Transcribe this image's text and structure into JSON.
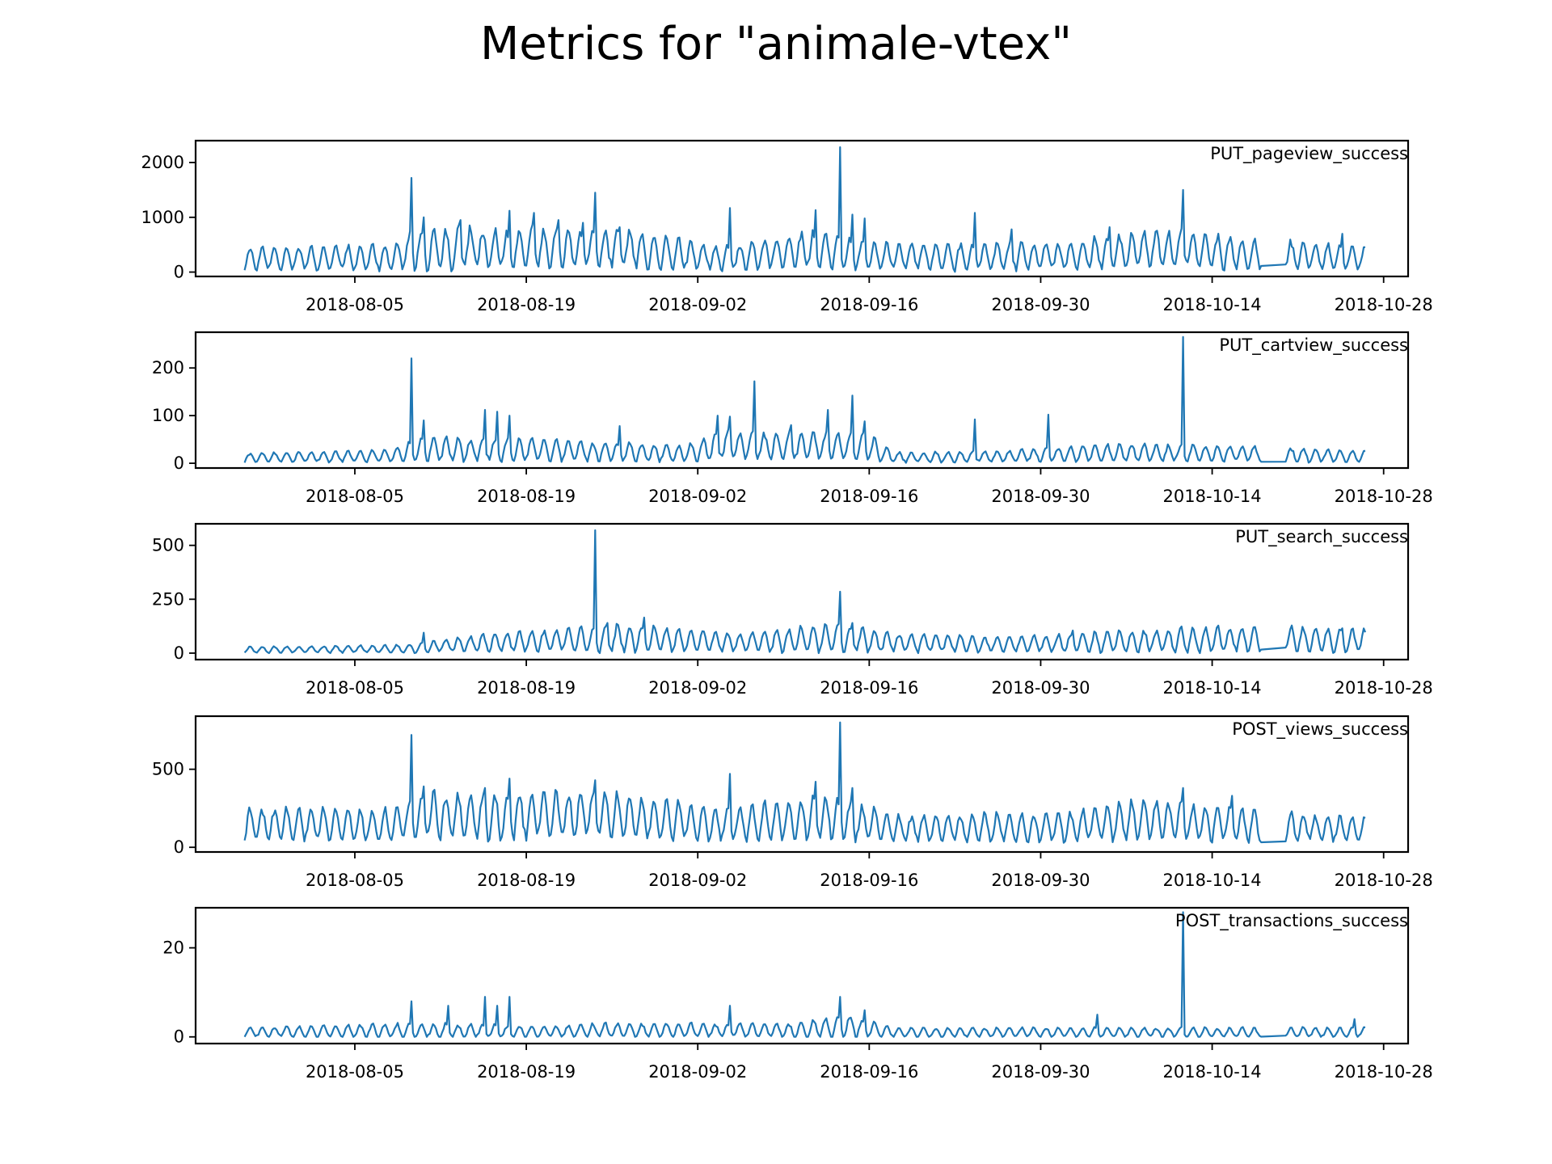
{
  "figure": {
    "title": "Metrics for \"animale-vtex\"",
    "line_color": "#1f77b4"
  },
  "chart_data": [
    {
      "type": "line",
      "title": "PUT_pageview_success",
      "xlabel": "",
      "ylabel": "",
      "x_range": [
        "2018-07-23",
        "2018-10-30"
      ],
      "x_ticks": [
        "2018-08-05",
        "2018-08-19",
        "2018-09-02",
        "2018-09-16",
        "2018-09-30",
        "2018-10-14",
        "2018-10-28"
      ],
      "ylim": [
        -80,
        2400
      ],
      "y_ticks": [
        0,
        1000,
        2000
      ],
      "series": [
        {
          "x_start": "2018-07-27",
          "x_end": "2018-10-26",
          "base": 230,
          "amplitude": 180,
          "gap": [
            "2018-10-18",
            "2018-10-20"
          ],
          "segments": [
            [
              "2018-07-27",
              250
            ],
            [
              "2018-08-08",
              260
            ],
            [
              "2018-08-10",
              430
            ],
            [
              "2018-08-26",
              440
            ],
            [
              "2018-09-04",
              260
            ],
            [
              "2018-09-12",
              420
            ],
            [
              "2018-09-17",
              280
            ],
            [
              "2018-10-02",
              300
            ],
            [
              "2018-10-09",
              430
            ],
            [
              "2018-10-18",
              330
            ],
            [
              "2018-10-26",
              250
            ]
          ],
          "spikes": [
            [
              "2018-08-09",
              1720
            ],
            [
              "2018-08-10",
              1000
            ],
            [
              "2018-08-13",
              950
            ],
            [
              "2018-08-17",
              1120
            ],
            [
              "2018-08-19",
              1080
            ],
            [
              "2018-08-21",
              950
            ],
            [
              "2018-08-23",
              900
            ],
            [
              "2018-08-24",
              1450
            ],
            [
              "2018-08-26",
              820
            ],
            [
              "2018-09-04",
              1170
            ],
            [
              "2018-09-11",
              1130
            ],
            [
              "2018-09-13",
              2280
            ],
            [
              "2018-09-14",
              1050
            ],
            [
              "2018-09-15",
              980
            ],
            [
              "2018-09-24",
              1080
            ],
            [
              "2018-09-27",
              780
            ],
            [
              "2018-10-05",
              820
            ],
            [
              "2018-10-11",
              1500
            ],
            [
              "2018-10-24",
              700
            ]
          ]
        }
      ]
    },
    {
      "type": "line",
      "title": "PUT_cartview_success",
      "xlabel": "",
      "ylabel": "",
      "x_range": [
        "2018-07-23",
        "2018-10-30"
      ],
      "x_ticks": [
        "2018-08-05",
        "2018-08-19",
        "2018-09-02",
        "2018-09-16",
        "2018-09-30",
        "2018-10-14",
        "2018-10-28"
      ],
      "ylim": [
        -10,
        275
      ],
      "y_ticks": [
        0,
        100,
        200
      ],
      "series": [
        {
          "x_start": "2018-07-27",
          "x_end": "2018-10-26",
          "base": 13,
          "amplitude": 10,
          "gap": [
            "2018-10-18",
            "2018-10-20"
          ],
          "segments": [
            [
              "2018-07-27",
              12
            ],
            [
              "2018-08-08",
              15
            ],
            [
              "2018-08-10",
              30
            ],
            [
              "2018-08-20",
              28
            ],
            [
              "2018-09-01",
              20
            ],
            [
              "2018-09-04",
              38
            ],
            [
              "2018-09-16",
              35
            ],
            [
              "2018-09-18",
              12
            ],
            [
              "2018-09-26",
              14
            ],
            [
              "2018-10-06",
              22
            ],
            [
              "2018-10-18",
              20
            ],
            [
              "2018-10-26",
              14
            ]
          ],
          "spikes": [
            [
              "2018-08-09",
              220
            ],
            [
              "2018-08-10",
              90
            ],
            [
              "2018-08-15",
              112
            ],
            [
              "2018-08-16",
              108
            ],
            [
              "2018-08-17",
              100
            ],
            [
              "2018-08-26",
              78
            ],
            [
              "2018-09-03",
              100
            ],
            [
              "2018-09-04",
              98
            ],
            [
              "2018-09-06",
              172
            ],
            [
              "2018-09-09",
              80
            ],
            [
              "2018-09-12",
              112
            ],
            [
              "2018-09-14",
              142
            ],
            [
              "2018-09-15",
              88
            ],
            [
              "2018-09-24",
              92
            ],
            [
              "2018-09-30",
              102
            ],
            [
              "2018-10-11",
              265
            ],
            [
              "2018-10-26",
              55
            ]
          ]
        }
      ]
    },
    {
      "type": "line",
      "title": "PUT_search_success",
      "xlabel": "",
      "ylabel": "",
      "x_range": [
        "2018-07-23",
        "2018-10-30"
      ],
      "x_ticks": [
        "2018-08-05",
        "2018-08-19",
        "2018-09-02",
        "2018-09-16",
        "2018-09-30",
        "2018-10-14",
        "2018-10-28"
      ],
      "ylim": [
        -30,
        600
      ],
      "y_ticks": [
        0,
        250,
        500
      ],
      "series": [
        {
          "x_start": "2018-07-27",
          "x_end": "2018-10-26",
          "base": 12,
          "amplitude": 10,
          "gap": [
            "2018-10-18",
            "2018-10-20"
          ],
          "segments": [
            [
              "2018-07-27",
              15
            ],
            [
              "2018-08-09",
              20
            ],
            [
              "2018-08-15",
              45
            ],
            [
              "2018-08-22",
              60
            ],
            [
              "2018-08-28",
              70
            ],
            [
              "2018-09-05",
              50
            ],
            [
              "2018-09-13",
              70
            ],
            [
              "2018-09-18",
              50
            ],
            [
              "2018-09-26",
              40
            ],
            [
              "2018-10-01",
              45
            ],
            [
              "2018-10-10",
              60
            ],
            [
              "2018-10-18",
              65
            ],
            [
              "2018-10-26",
              60
            ]
          ],
          "spikes": [
            [
              "2018-08-10",
              95
            ],
            [
              "2018-08-24",
              570
            ],
            [
              "2018-08-25",
              140
            ],
            [
              "2018-08-28",
              165
            ],
            [
              "2018-09-13",
              285
            ],
            [
              "2018-09-14",
              140
            ],
            [
              "2018-10-02",
              105
            ],
            [
              "2018-10-24",
              115
            ]
          ]
        }
      ]
    },
    {
      "type": "line",
      "title": "POST_views_success",
      "xlabel": "",
      "ylabel": "",
      "x_range": [
        "2018-07-23",
        "2018-10-30"
      ],
      "x_ticks": [
        "2018-08-05",
        "2018-08-19",
        "2018-09-02",
        "2018-09-16",
        "2018-09-30",
        "2018-10-14",
        "2018-10-28"
      ],
      "ylim": [
        -30,
        840
      ],
      "y_ticks": [
        0,
        500
      ],
      "series": [
        {
          "x_start": "2018-07-27",
          "x_end": "2018-10-26",
          "base": 120,
          "amplitude": 80,
          "gap": [
            "2018-10-18",
            "2018-10-20"
          ],
          "segments": [
            [
              "2018-07-27",
              150
            ],
            [
              "2018-08-08",
              140
            ],
            [
              "2018-08-10",
              200
            ],
            [
              "2018-08-26",
              210
            ],
            [
              "2018-09-04",
              140
            ],
            [
              "2018-09-13",
              200
            ],
            [
              "2018-09-18",
              120
            ],
            [
              "2018-10-02",
              130
            ],
            [
              "2018-10-09",
              180
            ],
            [
              "2018-10-18",
              140
            ],
            [
              "2018-10-26",
              110
            ]
          ],
          "spikes": [
            [
              "2018-08-09",
              720
            ],
            [
              "2018-08-10",
              390
            ],
            [
              "2018-08-15",
              380
            ],
            [
              "2018-08-17",
              440
            ],
            [
              "2018-08-24",
              430
            ],
            [
              "2018-09-04",
              470
            ],
            [
              "2018-09-11",
              420
            ],
            [
              "2018-09-13",
              800
            ],
            [
              "2018-09-14",
              380
            ],
            [
              "2018-10-11",
              380
            ],
            [
              "2018-10-15",
              330
            ]
          ]
        }
      ]
    },
    {
      "type": "line",
      "title": "POST_transactions_success",
      "xlabel": "",
      "ylabel": "",
      "x_range": [
        "2018-07-23",
        "2018-10-30"
      ],
      "x_ticks": [
        "2018-08-05",
        "2018-08-19",
        "2018-09-02",
        "2018-09-16",
        "2018-09-30",
        "2018-10-14",
        "2018-10-28"
      ],
      "ylim": [
        -1.5,
        29
      ],
      "y_ticks": [
        0,
        20
      ],
      "series": [
        {
          "x_start": "2018-07-27",
          "x_end": "2018-10-26",
          "base": 1,
          "amplitude": 1,
          "gap": [
            "2018-10-18",
            "2018-10-20"
          ],
          "segments": [
            [
              "2018-07-27",
              1
            ],
            [
              "2018-08-09",
              1.5
            ],
            [
              "2018-08-20",
              1.2
            ],
            [
              "2018-08-27",
              1.5
            ],
            [
              "2018-09-10",
              1.5
            ],
            [
              "2018-09-14",
              2.5
            ],
            [
              "2018-09-18",
              1
            ],
            [
              "2018-10-26",
              1
            ]
          ],
          "spikes": [
            [
              "2018-08-09",
              8
            ],
            [
              "2018-08-12",
              7
            ],
            [
              "2018-08-15",
              9
            ],
            [
              "2018-08-16",
              7
            ],
            [
              "2018-08-17",
              9
            ],
            [
              "2018-09-04",
              7
            ],
            [
              "2018-09-13",
              9
            ],
            [
              "2018-09-15",
              6
            ],
            [
              "2018-10-04",
              5
            ],
            [
              "2018-10-11",
              28
            ],
            [
              "2018-10-25",
              4
            ]
          ]
        }
      ]
    }
  ]
}
